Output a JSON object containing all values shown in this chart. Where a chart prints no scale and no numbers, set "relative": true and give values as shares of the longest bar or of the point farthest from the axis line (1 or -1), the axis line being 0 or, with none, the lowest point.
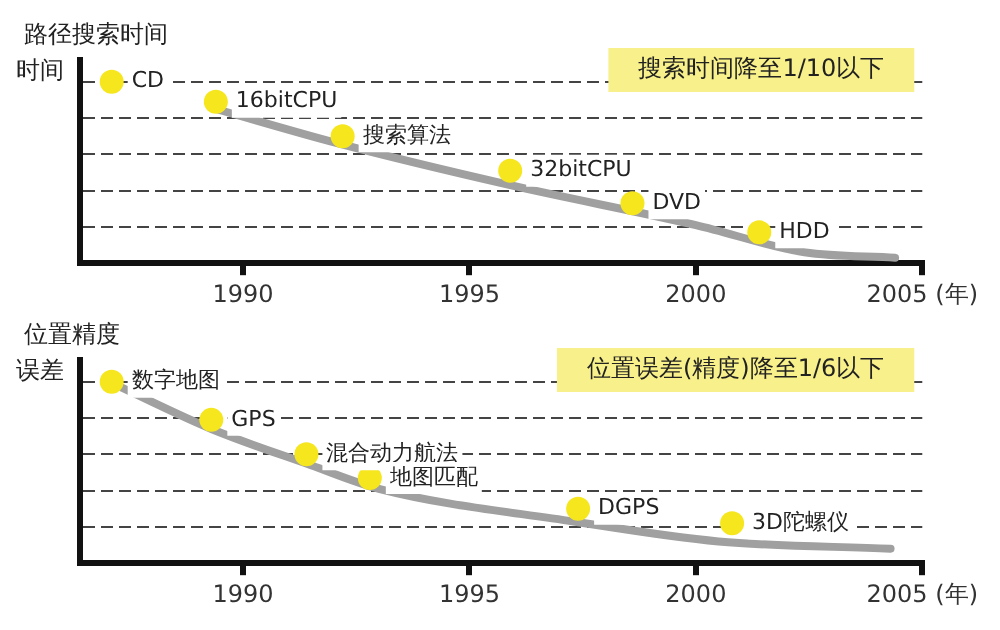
{
  "chart_data": [
    {
      "type": "scatter",
      "ylabel": "路径搜索时间",
      "relative": true,
      "x": [
        1987.1,
        1989.4,
        1992.2,
        1995.9,
        1998.6,
        2001.4
      ],
      "series": [
        {
          "type": "line",
          "color": "#a0a0a0",
          "marker": "none",
          "x": [
            1989.4,
            1992.1,
            1995.9,
            2000.0,
            2002.4,
            2004.4
          ],
          "values": [
            0.85,
            0.66,
            0.43,
            0.21,
            0.06,
            0.03
          ]
        },
        {
          "type": "scatter",
          "color": "#f5e61e",
          "marker": "circle",
          "values": [
            1,
            0.89,
            0.7,
            0.51,
            0.33,
            0.17
          ]
        }
      ],
      "xlim": [
        1986.4,
        2005
      ],
      "xticks": [
        1990,
        1995,
        2000,
        {
          "value": 2005,
          "label": "2005 (年)"
        }
      ],
      "tick_labels": "x",
      "grid": "y",
      "legend": false,
      "annotations": [
        "时间",
        "搜索时间降至1/10以下",
        {
          "text": "CD",
          "x": 1987.1,
          "y": 1
        },
        {
          "text": "16bitCPU",
          "x": 1989.4,
          "y": 0.89
        },
        {
          "text": "搜索算法",
          "x": 1992.2,
          "y": 0.7
        },
        {
          "text": "32bitCPU",
          "x": 1995.9,
          "y": 0.51
        },
        {
          "text": "DVD",
          "x": 1998.6,
          "y": 0.33
        },
        {
          "text": "HDD",
          "x": 2001.4,
          "y": 0.17
        }
      ]
    },
    {
      "type": "scatter",
      "ylabel": "位置精度",
      "relative": true,
      "x": [
        1987.1,
        1989.3,
        1991.4,
        1992.8,
        1997.4,
        2000.8
      ],
      "series": [
        {
          "type": "line",
          "color": "#a0a0a0",
          "marker": "none",
          "x": [
            1987.3,
            1989.3,
            1991.5,
            1993.0,
            1997.3,
            2000.5,
            2004.3
          ],
          "values": [
            0.97,
            0.74,
            0.54,
            0.41,
            0.23,
            0.12,
            0.08
          ]
        },
        {
          "type": "scatter",
          "color": "#f5e61e",
          "marker": "circle",
          "values": [
            1,
            0.79,
            0.6,
            0.47,
            0.3,
            0.22
          ]
        }
      ],
      "xlim": [
        1986.4,
        2005
      ],
      "xticks": [
        1990,
        1995,
        2000,
        {
          "value": 2005,
          "label": "2005 (年)"
        }
      ],
      "tick_labels": "x",
      "grid": "y",
      "legend": false,
      "annotations": [
        "误差",
        "位置误差(精度)降至1/6以下",
        {
          "text": "数字地图",
          "x": 1987.1,
          "y": 1
        },
        {
          "text": "GPS",
          "x": 1989.3,
          "y": 0.79
        },
        {
          "text": "混合动力航法",
          "x": 1991.4,
          "y": 0.6
        },
        {
          "text": "地图匹配",
          "x": 1992.8,
          "y": 0.47
        },
        {
          "text": "DGPS",
          "x": 1997.4,
          "y": 0.3
        },
        {
          "text": "3D陀螺仪",
          "x": 2000.8,
          "y": 0.22
        }
      ]
    }
  ]
}
